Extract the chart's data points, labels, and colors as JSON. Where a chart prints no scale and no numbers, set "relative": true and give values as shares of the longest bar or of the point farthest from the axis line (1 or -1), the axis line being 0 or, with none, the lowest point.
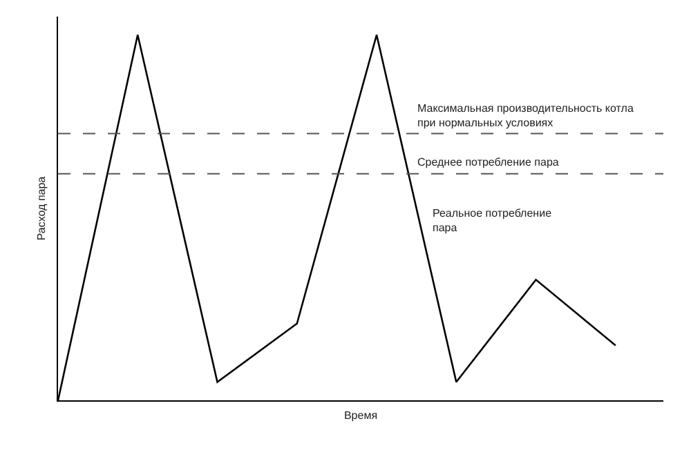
{
  "chart_data": {
    "type": "line",
    "relative": true,
    "xlabel": "Время",
    "ylabel": "Расход пара",
    "categories": [
      null,
      null,
      null,
      null,
      null,
      null,
      null,
      null
    ],
    "series": [
      {
        "color": "#000000",
        "values": [
          0,
          1,
          0.05,
          0.21,
          1,
          0.05,
          0.33,
          0.15
        ]
      }
    ],
    "ref_lines": [
      {
        "axis": "y",
        "value": 0.73,
        "label": "Максимальная производительность котла при нормальных условиях",
        "color": "#555555",
        "line_style": "dashed"
      },
      {
        "axis": "y",
        "value": 0.62,
        "label": "Среднее потребление пара",
        "color": "#555555",
        "line_style": "dashed"
      }
    ],
    "annotations": [
      "Реальное потребление пара"
    ],
    "marker": "none",
    "line_style": "solid"
  }
}
